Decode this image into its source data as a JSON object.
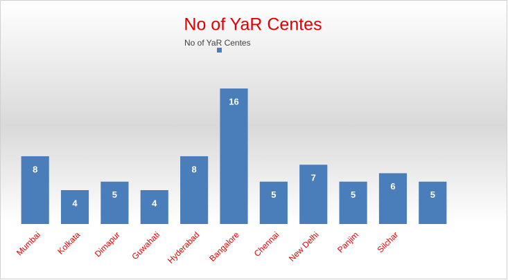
{
  "chart_data": {
    "type": "bar",
    "title": "No of YaR Centes",
    "categories": [
      "Mumbai",
      "Kolkata",
      "Dimapur",
      "Guwahati",
      "Hyderabad",
      "Bangalore",
      "Chennai",
      "New Delhi",
      "Panjim",
      "Silchar",
      null
    ],
    "series": [
      {
        "name": "No of YaR Centes",
        "color": "#4a7ebb",
        "values": [
          8,
          4,
          5,
          4,
          8,
          16,
          5,
          7,
          5,
          6,
          5
        ]
      }
    ],
    "ylim": [
      0,
      16
    ],
    "grid": false,
    "legend": "top"
  }
}
